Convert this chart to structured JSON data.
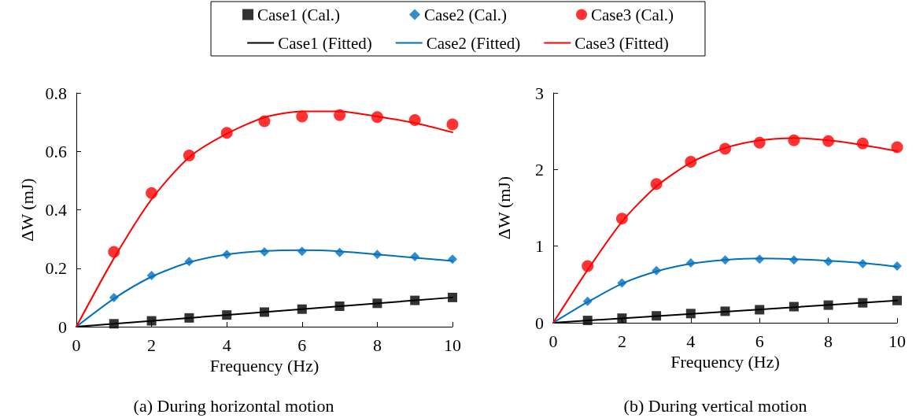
{
  "chart_data": [
    {
      "type": "scatter",
      "title": "(a) During horizontal motion",
      "xlabel": "Frequency (Hz)",
      "ylabel": "ΔW (mJ)",
      "xlim": [
        0,
        10
      ],
      "xticks": [
        0,
        2,
        4,
        6,
        8,
        10
      ],
      "ylim": [
        0,
        0.8
      ],
      "yticks": [
        0,
        0.2,
        0.4,
        0.6,
        0.8
      ],
      "grid": false,
      "legend": "top",
      "series": [
        {
          "name": "Case1 (Cal.)",
          "marker": "square",
          "color": "#000000",
          "x": [
            1,
            2,
            3,
            4,
            5,
            6,
            7,
            8,
            9,
            10
          ],
          "values": [
            0.01,
            0.02,
            0.03,
            0.04,
            0.05,
            0.06,
            0.07,
            0.08,
            0.09,
            0.1
          ]
        },
        {
          "name": "Case2 (Cal.)",
          "marker": "diamond",
          "color": "#0070c0",
          "x": [
            1,
            2,
            3,
            4,
            5,
            6,
            7,
            8,
            9,
            10
          ],
          "values": [
            0.1,
            0.175,
            0.223,
            0.247,
            0.256,
            0.258,
            0.254,
            0.247,
            0.24,
            0.231
          ]
        },
        {
          "name": "Case3 (Cal.)",
          "marker": "circle",
          "color": "#ff0000",
          "x": [
            1,
            2,
            3,
            4,
            5,
            6,
            7,
            8,
            9,
            10
          ],
          "values": [
            0.256,
            0.457,
            0.586,
            0.663,
            0.703,
            0.719,
            0.724,
            0.717,
            0.707,
            0.692
          ]
        },
        {
          "name": "Case1 (Fitted)",
          "type": "line",
          "marker": "none",
          "line_style": "solid",
          "color": "#000000",
          "x": [
            0,
            10
          ],
          "values": [
            0,
            0.1
          ]
        },
        {
          "name": "Case2 (Fitted)",
          "type": "line",
          "marker": "none",
          "line_style": "solid",
          "color": "#0070c0",
          "x": [
            0,
            1,
            2,
            3,
            4,
            5,
            6,
            7,
            8,
            9,
            10
          ],
          "values": [
            0,
            0.096,
            0.171,
            0.22,
            0.247,
            0.259,
            0.262,
            0.258,
            0.247,
            0.236,
            0.225
          ]
        },
        {
          "name": "Case3 (Fitted)",
          "type": "line",
          "marker": "none",
          "line_style": "solid",
          "color": "#ff0000",
          "x": [
            0,
            1,
            2,
            3,
            4,
            5,
            6,
            7,
            8,
            9,
            10
          ],
          "values": [
            0,
            0.234,
            0.436,
            0.58,
            0.66,
            0.716,
            0.737,
            0.737,
            0.719,
            0.697,
            0.665
          ]
        }
      ]
    },
    {
      "type": "scatter",
      "title": "(b) During vertical motion",
      "xlabel": "Frequency (Hz)",
      "ylabel": "ΔW (mJ)",
      "xlim": [
        0,
        10
      ],
      "xticks": [
        0,
        2,
        4,
        6,
        8,
        10
      ],
      "ylim": [
        0,
        3
      ],
      "yticks": [
        0,
        1,
        2,
        3
      ],
      "grid": false,
      "series": [
        {
          "marker": "square",
          "color": "#000000",
          "x": [
            1,
            2,
            3,
            4,
            5,
            6,
            7,
            8,
            9,
            10
          ],
          "values": [
            0.03,
            0.06,
            0.09,
            0.12,
            0.15,
            0.17,
            0.21,
            0.23,
            0.26,
            0.29
          ]
        },
        {
          "marker": "diamond",
          "color": "#0070c0",
          "x": [
            1,
            2,
            3,
            4,
            5,
            6,
            7,
            8,
            9,
            10
          ],
          "values": [
            0.28,
            0.52,
            0.68,
            0.78,
            0.82,
            0.83,
            0.82,
            0.8,
            0.77,
            0.74
          ]
        },
        {
          "marker": "circle",
          "color": "#ff0000",
          "x": [
            1,
            2,
            3,
            4,
            5,
            6,
            7,
            8,
            9,
            10
          ],
          "values": [
            0.74,
            1.36,
            1.81,
            2.1,
            2.27,
            2.35,
            2.38,
            2.37,
            2.34,
            2.29
          ]
        },
        {
          "type": "line",
          "marker": "none",
          "line_style": "solid",
          "color": "#000000",
          "x": [
            0,
            10
          ],
          "values": [
            0,
            0.29
          ]
        },
        {
          "type": "line",
          "marker": "none",
          "line_style": "solid",
          "color": "#0070c0",
          "x": [
            0,
            1,
            2,
            3,
            4,
            5,
            6,
            7,
            8,
            9,
            10
          ],
          "values": [
            0,
            0.27,
            0.51,
            0.67,
            0.77,
            0.82,
            0.84,
            0.83,
            0.81,
            0.78,
            0.73
          ]
        },
        {
          "type": "line",
          "marker": "none",
          "line_style": "solid",
          "color": "#ff0000",
          "x": [
            0,
            1,
            2,
            3,
            4,
            5,
            6,
            7,
            8,
            9,
            10
          ],
          "values": [
            0,
            0.69,
            1.32,
            1.78,
            2.09,
            2.28,
            2.38,
            2.41,
            2.38,
            2.32,
            2.24
          ]
        }
      ]
    }
  ]
}
